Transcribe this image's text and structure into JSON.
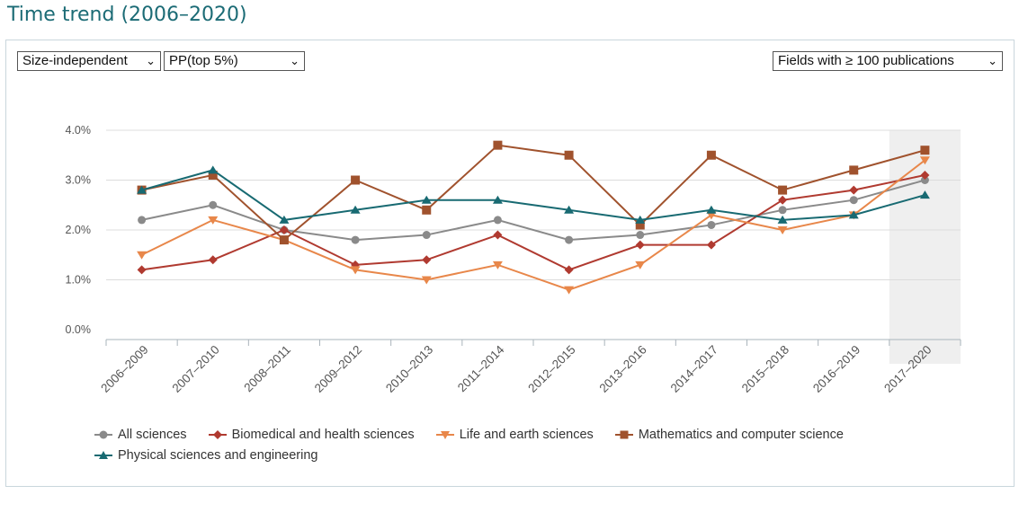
{
  "page": {
    "title": "Time trend (2006–2020)"
  },
  "controls": {
    "indicator_type": "Size-independent",
    "indicator": "PP(top 5%)",
    "field_filter": "Fields with ≥ 100 publications"
  },
  "colors": {
    "title": "#1b6b75",
    "all_sciences": "#8a8a8a",
    "biomedical": "#b03a30",
    "life_earth": "#e8874a",
    "math_cs": "#a0522d",
    "physical": "#186a72",
    "highlight": "#efefef"
  },
  "chart_data": {
    "type": "line",
    "categories": [
      "2006–2009",
      "2007–2010",
      "2008–2011",
      "2009–2012",
      "2010–2013",
      "2011–2014",
      "2012–2015",
      "2013–2016",
      "2014–2017",
      "2015–2018",
      "2016–2019",
      "2017–2020"
    ],
    "y_ticks": [
      "0.0%",
      "1.0%",
      "2.0%",
      "3.0%",
      "4.0%"
    ],
    "ylim": [
      0,
      4.0
    ],
    "grid": true,
    "highlight_category": "2017–2020",
    "legend_position": "bottom",
    "series": [
      {
        "name": "All sciences",
        "marker": "circle",
        "color_key": "all_sciences",
        "values": [
          2.2,
          2.5,
          2.0,
          1.8,
          1.9,
          2.2,
          1.8,
          1.9,
          2.1,
          2.4,
          2.6,
          3.0
        ]
      },
      {
        "name": "Biomedical and health sciences",
        "marker": "diamond",
        "color_key": "biomedical",
        "values": [
          1.2,
          1.4,
          2.0,
          1.3,
          1.4,
          1.9,
          1.2,
          1.7,
          1.7,
          2.6,
          2.8,
          3.1
        ]
      },
      {
        "name": "Life and earth sciences",
        "marker": "triangle-down",
        "color_key": "life_earth",
        "values": [
          1.5,
          2.2,
          1.8,
          1.2,
          1.0,
          1.3,
          0.8,
          1.3,
          2.3,
          2.0,
          2.3,
          3.4
        ]
      },
      {
        "name": "Mathematics and computer science",
        "marker": "square",
        "color_key": "math_cs",
        "values": [
          2.8,
          3.1,
          1.8,
          3.0,
          2.4,
          3.7,
          3.5,
          2.1,
          3.5,
          2.8,
          3.2,
          3.6
        ]
      },
      {
        "name": "Physical sciences and engineering",
        "marker": "triangle-up",
        "color_key": "physical",
        "values": [
          2.8,
          3.2,
          2.2,
          2.4,
          2.6,
          2.6,
          2.4,
          2.2,
          2.4,
          2.2,
          2.3,
          2.7
        ]
      }
    ]
  }
}
